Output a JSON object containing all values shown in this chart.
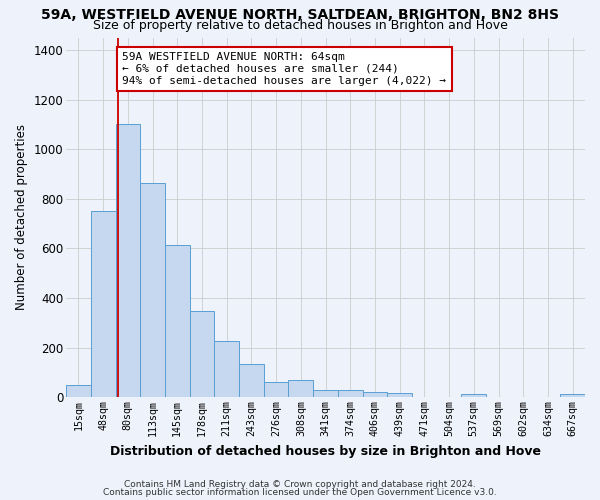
{
  "title1": "59A, WESTFIELD AVENUE NORTH, SALTDEAN, BRIGHTON, BN2 8HS",
  "title2": "Size of property relative to detached houses in Brighton and Hove",
  "xlabel": "Distribution of detached houses by size in Brighton and Hove",
  "ylabel": "Number of detached properties",
  "footnote1": "Contains HM Land Registry data © Crown copyright and database right 2024.",
  "footnote2": "Contains public sector information licensed under the Open Government Licence v3.0.",
  "bar_labels": [
    "15sqm",
    "48sqm",
    "80sqm",
    "113sqm",
    "145sqm",
    "178sqm",
    "211sqm",
    "243sqm",
    "276sqm",
    "308sqm",
    "341sqm",
    "374sqm",
    "406sqm",
    "439sqm",
    "471sqm",
    "504sqm",
    "537sqm",
    "569sqm",
    "602sqm",
    "634sqm",
    "667sqm"
  ],
  "bar_values": [
    50,
    750,
    1100,
    865,
    615,
    348,
    228,
    133,
    60,
    70,
    28,
    28,
    20,
    18,
    0,
    0,
    12,
    0,
    0,
    0,
    12
  ],
  "bar_color": "#c5d8f0",
  "bar_edge_color": "#5a9fd4",
  "vline_color": "#cc0000",
  "vline_xidx": 1.62,
  "annotation_text": "59A WESTFIELD AVENUE NORTH: 64sqm\n← 6% of detached houses are smaller (244)\n94% of semi-detached houses are larger (4,022) →",
  "annotation_box_color": "#ffffff",
  "annotation_box_edge": "#cc0000",
  "ylim": [
    0,
    1450
  ],
  "yticks": [
    0,
    200,
    400,
    600,
    800,
    1000,
    1200,
    1400
  ],
  "grid_color": "#cccccc",
  "bg_color": "#eef2fa",
  "title1_fontsize": 10,
  "title2_fontsize": 9
}
